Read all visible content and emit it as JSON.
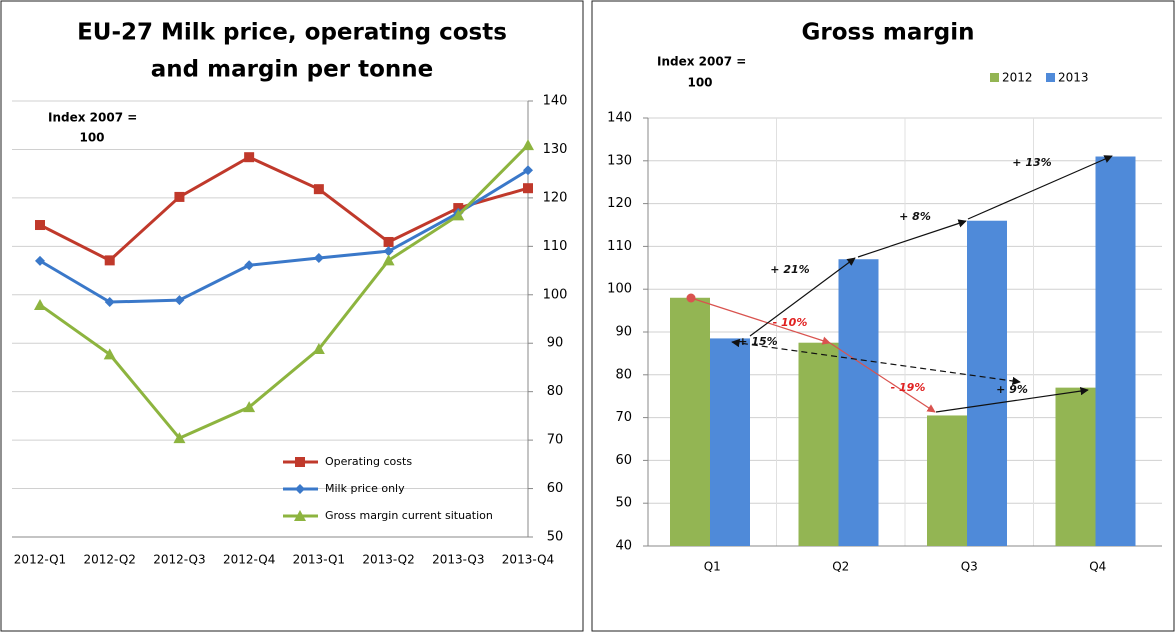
{
  "chart_data": [
    {
      "type": "line",
      "title": [
        "EU-27 Milk price, operating costs",
        "and margin per tonne"
      ],
      "annotation": [
        "Index 2007 =",
        "100"
      ],
      "categories": [
        "2012-Q1",
        "2012-Q2",
        "2012-Q3",
        "2012-Q4",
        "2013-Q1",
        "2013-Q2",
        "2013-Q3",
        "2013-Q4"
      ],
      "series": [
        {
          "name": "Operating costs",
          "color": "#c0392b",
          "marker": "square",
          "values": [
            114.4,
            107.1,
            120.2,
            128.4,
            121.8,
            110.9,
            117.9,
            122
          ]
        },
        {
          "name": "Milk price only",
          "color": "#3a78c9",
          "marker": "diamond",
          "values": [
            107,
            98.5,
            98.9,
            106.1,
            107.6,
            109,
            116.9,
            125.7
          ]
        },
        {
          "name": "Gross margin current situation",
          "color": "#8db43f",
          "marker": "triangle",
          "values": [
            97.9,
            87.7,
            70.4,
            76.8,
            88.8,
            107.1,
            116.4,
            130.9
          ]
        }
      ],
      "ylim": [
        50,
        140
      ],
      "yticks": [
        50,
        60,
        70,
        80,
        90,
        100,
        110,
        120,
        130,
        140
      ],
      "grid": true
    },
    {
      "type": "bar",
      "title": "Gross margin",
      "annotation": [
        "Index 2007 =",
        "100"
      ],
      "categories": [
        "Q1",
        "Q2",
        "Q3",
        "Q4"
      ],
      "series": [
        {
          "name": "2012",
          "color": "#93b553",
          "values": [
            98,
            87.5,
            70.5,
            77
          ]
        },
        {
          "name": "2013",
          "color": "#4f8ad9",
          "values": [
            88.5,
            107,
            116,
            131
          ]
        }
      ],
      "ylim": [
        40,
        140
      ],
      "yticks": [
        40,
        50,
        60,
        70,
        80,
        90,
        100,
        110,
        120,
        130,
        140
      ],
      "grid": true,
      "arrow_labels": [
        "- 10%",
        "- 19%",
        "+ 21%",
        "+ 8%",
        "+ 13%",
        "+ 15%",
        "+ 9%"
      ]
    }
  ]
}
